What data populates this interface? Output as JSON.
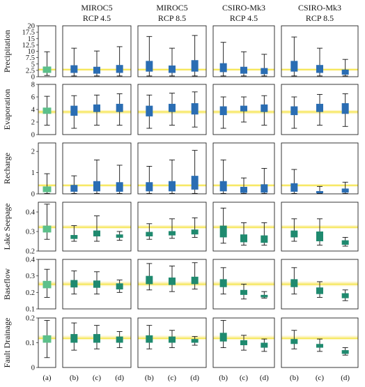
{
  "chart_data": {
    "type": "boxplot-grid",
    "columns": [
      {
        "id": "a",
        "line1": "",
        "line2": ""
      },
      {
        "id": "m45",
        "line1": "MIROC5",
        "line2": "RCP 4.5"
      },
      {
        "id": "m85",
        "line1": "MIROC5",
        "line2": "RCP 8.5"
      },
      {
        "id": "c45",
        "line1": "CSIRO-Mk3",
        "line2": "RCP 4.5"
      },
      {
        "id": "c85",
        "line1": "CSIRO-Mk3",
        "line2": "RCP 8.5"
      }
    ],
    "x_labels": {
      "a": [
        "(a)"
      ],
      "scen": [
        "(b)",
        "(c)",
        "(d)"
      ]
    },
    "colors": {
      "baseline": "#5cc08a",
      "blue": "#2a6db3",
      "teal": "#1f8a6f",
      "band": "#fdf4c4",
      "ref_line": "#f3e43a",
      "whisker": "#111111"
    },
    "rows": [
      {
        "label": "Precipitation",
        "ylim": [
          0,
          20
        ],
        "ticks": [
          0,
          2.5,
          5,
          7.5,
          10,
          12.5,
          15,
          17.5,
          20
        ],
        "tick_labels": [
          "0",
          "2.5",
          "5",
          "7.5",
          "10",
          "12.5",
          "15",
          "17.5",
          "20"
        ],
        "ref": 2.8,
        "band": [
          2.3,
          3.3
        ],
        "color": "blue",
        "baseline": {
          "lo": 0.5,
          "q1": 1.5,
          "q3": 4.0,
          "hi": 9.8
        },
        "cells": [
          [
            {
              "lo": 0.3,
              "q1": 1.5,
              "q3": 4.5,
              "hi": 11.2
            },
            {
              "lo": 0.3,
              "q1": 1.2,
              "q3": 3.9,
              "hi": 10.1
            },
            {
              "lo": 0.3,
              "q1": 1.5,
              "q3": 4.6,
              "hi": 11.8
            }
          ],
          [
            {
              "lo": 0.3,
              "q1": 2.0,
              "q3": 6.2,
              "hi": 15.8
            },
            {
              "lo": 0.3,
              "q1": 1.5,
              "q3": 4.4,
              "hi": 11.2
            },
            {
              "lo": 0.3,
              "q1": 2.0,
              "q3": 6.5,
              "hi": 16.2
            }
          ],
          [
            {
              "lo": 0.3,
              "q1": 1.8,
              "q3": 5.3,
              "hi": 13.5
            },
            {
              "lo": 0.3,
              "q1": 1.2,
              "q3": 3.9,
              "hi": 9.8
            },
            {
              "lo": 0.3,
              "q1": 1.0,
              "q3": 3.4,
              "hi": 8.8
            }
          ],
          [
            {
              "lo": 0.3,
              "q1": 2.0,
              "q3": 6.2,
              "hi": 15.6
            },
            {
              "lo": 0.3,
              "q1": 1.5,
              "q3": 4.6,
              "hi": 11.2
            },
            {
              "lo": 0.3,
              "q1": 0.8,
              "q3": 2.8,
              "hi": 6.8
            }
          ]
        ]
      },
      {
        "label": "Evaporation",
        "ylim": [
          0,
          8
        ],
        "ticks": [
          0,
          2,
          4,
          6,
          8
        ],
        "tick_labels": [
          "0",
          "2",
          "4",
          "6",
          "8"
        ],
        "ref": 3.6,
        "band": [
          3.3,
          3.9
        ],
        "color": "blue",
        "baseline": {
          "lo": 1.5,
          "q1": 3.3,
          "q3": 4.3,
          "hi": 6.1
        },
        "cells": [
          [
            {
              "lo": 1.0,
              "q1": 3.0,
              "q3": 4.6,
              "hi": 6.2
            },
            {
              "lo": 1.5,
              "q1": 3.6,
              "q3": 4.8,
              "hi": 6.3
            },
            {
              "lo": 1.5,
              "q1": 3.6,
              "q3": 4.9,
              "hi": 6.5
            }
          ],
          [
            {
              "lo": 1.0,
              "q1": 2.9,
              "q3": 4.6,
              "hi": 6.3
            },
            {
              "lo": 1.5,
              "q1": 3.6,
              "q3": 4.9,
              "hi": 6.6
            },
            {
              "lo": 1.2,
              "q1": 3.2,
              "q3": 5.0,
              "hi": 6.8
            }
          ],
          [
            {
              "lo": 1.0,
              "q1": 3.1,
              "q3": 4.5,
              "hi": 6.0
            },
            {
              "lo": 2.0,
              "q1": 3.7,
              "q3": 4.6,
              "hi": 6.0
            },
            {
              "lo": 1.5,
              "q1": 3.6,
              "q3": 4.8,
              "hi": 6.2
            }
          ],
          [
            {
              "lo": 1.0,
              "q1": 3.1,
              "q3": 4.5,
              "hi": 6.0
            },
            {
              "lo": 1.5,
              "q1": 3.6,
              "q3": 4.9,
              "hi": 6.4
            },
            {
              "lo": 1.3,
              "q1": 3.3,
              "q3": 5.0,
              "hi": 6.5
            }
          ]
        ]
      },
      {
        "label": "Recharge",
        "ylim": [
          0,
          2.4
        ],
        "ticks": [
          0,
          1,
          2
        ],
        "tick_labels": [
          "0",
          "1",
          "2"
        ],
        "ref": 0.4,
        "band": [
          0.34,
          0.46
        ],
        "color": "blue",
        "baseline": {
          "lo": 0.02,
          "q1": 0.08,
          "q3": 0.35,
          "hi": 0.95
        },
        "cells": [
          [
            {
              "lo": 0.02,
              "q1": 0.1,
              "q3": 0.42,
              "hi": 0.85
            },
            {
              "lo": 0.02,
              "q1": 0.12,
              "q3": 0.6,
              "hi": 1.6
            },
            {
              "lo": 0.02,
              "q1": 0.1,
              "q3": 0.55,
              "hi": 1.35
            }
          ],
          [
            {
              "lo": 0.02,
              "q1": 0.12,
              "q3": 0.55,
              "hi": 1.3
            },
            {
              "lo": 0.02,
              "q1": 0.12,
              "q3": 0.6,
              "hi": 1.6
            },
            {
              "lo": 0.02,
              "q1": 0.2,
              "q3": 0.85,
              "hi": 2.05
            }
          ],
          [
            {
              "lo": 0.02,
              "q1": 0.12,
              "q3": 0.6,
              "hi": 1.6
            },
            {
              "lo": 0.02,
              "q1": 0.05,
              "q3": 0.33,
              "hi": 0.75
            },
            {
              "lo": 0.02,
              "q1": 0.06,
              "q3": 0.45,
              "hi": 1.2
            }
          ],
          [
            {
              "lo": 0.02,
              "q1": 0.1,
              "q3": 0.5,
              "hi": 1.15
            },
            {
              "lo": 0.02,
              "q1": 0.03,
              "q3": 0.13,
              "hi": 0.35
            },
            {
              "lo": 0.02,
              "q1": 0.06,
              "q3": 0.25,
              "hi": 0.55
            }
          ]
        ]
      },
      {
        "label": "Lake Seepage",
        "ylim": [
          0.2,
          0.45
        ],
        "ticks": [
          0.2,
          0.3,
          0.4
        ],
        "tick_labels": [
          "0.2",
          "0.3",
          "0.4"
        ],
        "ref": 0.322,
        "band": [
          0.315,
          0.332
        ],
        "color": "teal",
        "baseline": {
          "lo": 0.26,
          "q1": 0.295,
          "q3": 0.33,
          "hi": 0.44
        },
        "cells": [
          [
            {
              "lo": 0.25,
              "q1": 0.262,
              "q3": 0.282,
              "hi": 0.33
            },
            {
              "lo": 0.25,
              "q1": 0.275,
              "q3": 0.305,
              "hi": 0.38
            },
            {
              "lo": 0.255,
              "q1": 0.268,
              "q3": 0.285,
              "hi": 0.3
            }
          ],
          [
            {
              "lo": 0.26,
              "q1": 0.275,
              "q3": 0.298,
              "hi": 0.34
            },
            {
              "lo": 0.265,
              "q1": 0.28,
              "q3": 0.302,
              "hi": 0.365
            },
            {
              "lo": 0.27,
              "q1": 0.285,
              "q3": 0.31,
              "hi": 0.37
            }
          ],
          [
            {
              "lo": 0.24,
              "q1": 0.27,
              "q3": 0.33,
              "hi": 0.42
            },
            {
              "lo": 0.23,
              "q1": 0.245,
              "q3": 0.285,
              "hi": 0.345
            },
            {
              "lo": 0.23,
              "q1": 0.242,
              "q3": 0.28,
              "hi": 0.345
            }
          ],
          [
            {
              "lo": 0.25,
              "q1": 0.27,
              "q3": 0.305,
              "hi": 0.365
            },
            {
              "lo": 0.23,
              "q1": 0.25,
              "q3": 0.3,
              "hi": 0.365
            },
            {
              "lo": 0.225,
              "q1": 0.232,
              "q3": 0.255,
              "hi": 0.27
            }
          ]
        ]
      },
      {
        "label": "Baseflow",
        "ylim": [
          0.1,
          0.4
        ],
        "ticks": [
          0.1,
          0.2,
          0.3,
          0.4
        ],
        "tick_labels": [
          "0.1",
          "0.2",
          "0.3",
          "0.4"
        ],
        "ref": 0.25,
        "band": [
          0.238,
          0.265
        ],
        "color": "teal",
        "baseline": {
          "lo": 0.17,
          "q1": 0.225,
          "q3": 0.27,
          "hi": 0.34
        },
        "cells": [
          [
            {
              "lo": 0.19,
              "q1": 0.23,
              "q3": 0.275,
              "hi": 0.33
            },
            {
              "lo": 0.19,
              "q1": 0.228,
              "q3": 0.272,
              "hi": 0.325
            },
            {
              "lo": 0.2,
              "q1": 0.218,
              "q3": 0.255,
              "hi": 0.275
            }
          ],
          [
            {
              "lo": 0.215,
              "q1": 0.25,
              "q3": 0.3,
              "hi": 0.375
            },
            {
              "lo": 0.205,
              "q1": 0.245,
              "q3": 0.29,
              "hi": 0.36
            },
            {
              "lo": 0.22,
              "q1": 0.25,
              "q3": 0.295,
              "hi": 0.38
            }
          ],
          [
            {
              "lo": 0.19,
              "q1": 0.232,
              "q3": 0.28,
              "hi": 0.35
            },
            {
              "lo": 0.16,
              "q1": 0.185,
              "q3": 0.215,
              "hi": 0.25
            },
            {
              "lo": 0.165,
              "q1": 0.17,
              "q3": 0.185,
              "hi": 0.205
            }
          ],
          [
            {
              "lo": 0.19,
              "q1": 0.232,
              "q3": 0.28,
              "hi": 0.35
            },
            {
              "lo": 0.17,
              "q1": 0.19,
              "q3": 0.23,
              "hi": 0.265
            },
            {
              "lo": 0.15,
              "q1": 0.165,
              "q3": 0.195,
              "hi": 0.215
            }
          ]
        ]
      },
      {
        "label": "Fault Drainage",
        "ylim": [
          0,
          0.2
        ],
        "ticks": [
          0,
          0.1,
          0.2
        ],
        "tick_labels": [
          "0",
          "0.1",
          "0.2"
        ],
        "ref": 0.118,
        "band": [
          0.112,
          0.128
        ],
        "color": "teal",
        "baseline": {
          "lo": 0.04,
          "q1": 0.1,
          "q3": 0.13,
          "hi": 0.19
        },
        "cells": [
          [
            {
              "lo": 0.07,
              "q1": 0.1,
              "q3": 0.135,
              "hi": 0.18
            },
            {
              "lo": 0.075,
              "q1": 0.1,
              "q3": 0.135,
              "hi": 0.17
            },
            {
              "lo": 0.08,
              "q1": 0.1,
              "q3": 0.125,
              "hi": 0.145
            }
          ],
          [
            {
              "lo": 0.075,
              "q1": 0.1,
              "q3": 0.13,
              "hi": 0.17
            },
            {
              "lo": 0.08,
              "q1": 0.1,
              "q3": 0.125,
              "hi": 0.15
            },
            {
              "lo": 0.09,
              "q1": 0.1,
              "q3": 0.115,
              "hi": 0.125
            }
          ],
          [
            {
              "lo": 0.08,
              "q1": 0.105,
              "q3": 0.14,
              "hi": 0.19
            },
            {
              "lo": 0.07,
              "q1": 0.09,
              "q3": 0.11,
              "hi": 0.13
            },
            {
              "lo": 0.065,
              "q1": 0.08,
              "q3": 0.1,
              "hi": 0.115
            }
          ],
          [
            {
              "lo": 0.075,
              "q1": 0.095,
              "q3": 0.115,
              "hi": 0.15
            },
            {
              "lo": 0.065,
              "q1": 0.08,
              "q3": 0.095,
              "hi": 0.115
            },
            {
              "lo": 0.05,
              "q1": 0.055,
              "q3": 0.07,
              "hi": 0.08
            }
          ]
        ]
      }
    ]
  }
}
